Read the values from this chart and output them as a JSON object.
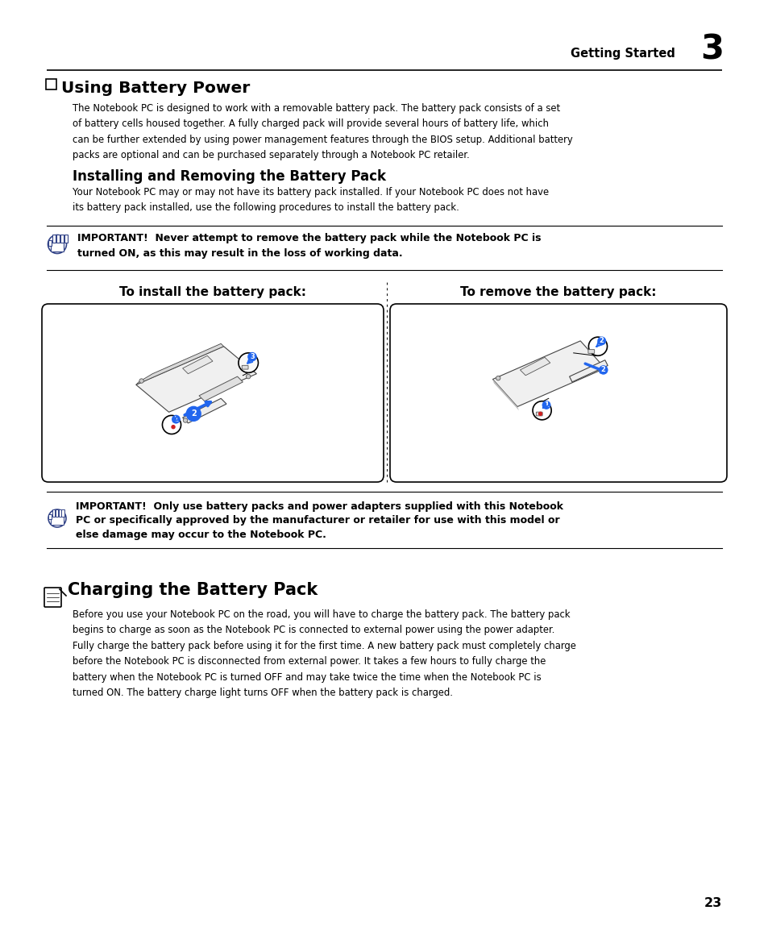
{
  "bg_color": "#ffffff",
  "page_width": 9.54,
  "page_height": 11.55,
  "header_text": "Getting Started",
  "header_number": "3",
  "section1_title": "Using Battery Power",
  "section1_body_lines": [
    "The Notebook PC is designed to work with a removable battery pack. The battery pack consists of a set",
    "of battery cells housed together. A fully charged pack will provide several hours of battery life, which",
    "can be further extended by using power management features through the BIOS setup. Additional battery",
    "packs are optional and can be purchased separately through a Notebook PC retailer."
  ],
  "section2_title": "Installing and Removing the Battery Pack",
  "section2_body_lines": [
    "Your Notebook PC may or may not have its battery pack installed. If your Notebook PC does not have",
    "its battery pack installed, use the following procedures to install the battery pack."
  ],
  "important1_line1": "IMPORTANT!  Never attempt to remove the battery pack while the Notebook PC is",
  "important1_line2": "turned ON, as this may result in the loss of working data.",
  "install_label": "To install the battery pack:",
  "remove_label": "To remove the battery pack:",
  "important2_line1": "IMPORTANT!  Only use battery packs and power adapters supplied with this Notebook",
  "important2_line2": "PC or specifically approved by the manufacturer or retailer for use with this model or",
  "important2_line3": "else damage may occur to the Notebook PC.",
  "section3_title": "Charging the Battery Pack",
  "section3_body_lines": [
    "Before you use your Notebook PC on the road, you will have to charge the battery pack. The battery pack",
    "begins to charge as soon as the Notebook PC is connected to external power using the power adapter.",
    "Fully charge the battery pack before using it for the first time. A new battery pack must completely charge",
    "before the Notebook PC is disconnected from external power. It takes a few hours to fully charge the",
    "battery when the Notebook PC is turned OFF and may take twice the time when the Notebook PC is",
    "turned ON. The battery charge light turns OFF when the battery pack is charged."
  ],
  "page_number": "23",
  "text_color": "#000000",
  "blue_color": "#1155cc",
  "hand_color": "#555555",
  "blue_bright": "#2266ee"
}
